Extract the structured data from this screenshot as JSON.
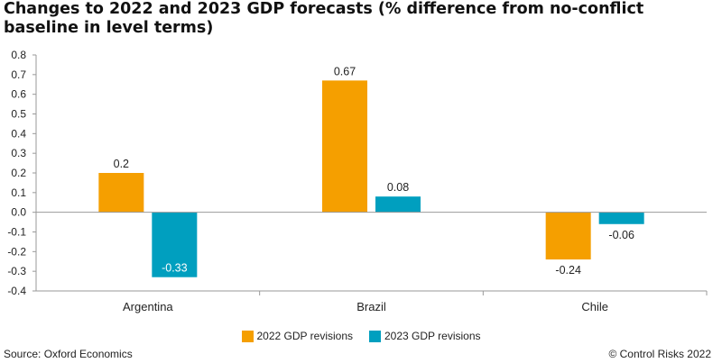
{
  "title": "Changes to 2022 and 2023 GDP forecasts (% difference from no-conflict baseline in level terms)",
  "source": "Source: Oxford Economics",
  "copyright": "© Control Risks 2022",
  "colors": {
    "series_2022": "#f59f00",
    "series_2023": "#009fbf"
  },
  "chart_data": {
    "type": "bar",
    "title": "Changes to 2022 and 2023 GDP forecasts (% difference from no-conflict baseline in level terms)",
    "xlabel": "",
    "ylabel": "",
    "categories": [
      "Argentina",
      "Brazil",
      "Chile"
    ],
    "series": [
      {
        "name": "2022 GDP revisions",
        "values": [
          0.2,
          0.67,
          -0.24
        ],
        "labels": [
          "0.2",
          "0.67",
          "-0.24"
        ]
      },
      {
        "name": "2023 GDP revisions",
        "values": [
          -0.33,
          0.08,
          -0.06
        ],
        "labels": [
          "-0.33",
          "0.08",
          "-0.06"
        ]
      }
    ],
    "ylim": [
      -0.4,
      0.8
    ],
    "yticks": [
      "0.8",
      "0.7",
      "0.6",
      "0.5",
      "0.4",
      "0.3",
      "0.2",
      "0.1",
      "0.0",
      "-0.1",
      "-0.2",
      "-0.3",
      "-0.4"
    ],
    "grid": false,
    "legend_position": "bottom"
  }
}
